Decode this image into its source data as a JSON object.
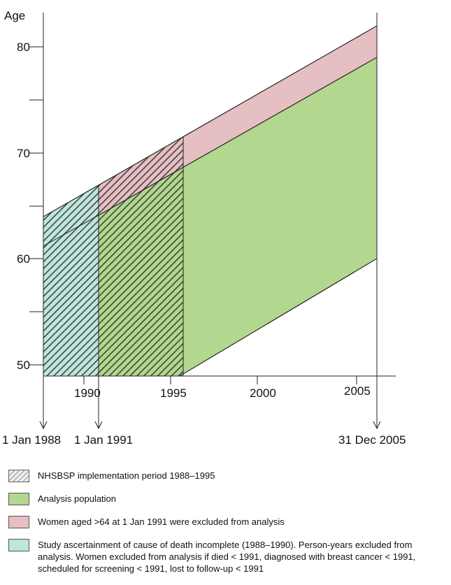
{
  "y_axis": {
    "label": "Age",
    "ticks": [
      "80",
      "70",
      "60",
      "50"
    ]
  },
  "x_axis": {
    "ticks": [
      "1990",
      "1995",
      "2000",
      "2005"
    ]
  },
  "markers": [
    {
      "label": "1 Jan 1988"
    },
    {
      "label": "1 Jan 1991"
    },
    {
      "label": "31 Dec 2005"
    }
  ],
  "legend": [
    {
      "id": "implementation",
      "text": "NHSBSP implementation period 1988–1995",
      "swatch": "hatched"
    },
    {
      "id": "analysis",
      "text": "Analysis population",
      "color": "#b1d88e"
    },
    {
      "id": "excluded",
      "text": "Women aged >64 at 1 Jan 1991 were excluded from analysis",
      "color": "#e6bfc2"
    },
    {
      "id": "incomplete",
      "text": "Study ascertainment of cause of death incomplete (1988–1990). Person-years excluded from analysis. Women excluded from analysis if died < 1991, diagnosed with breast cancer < 1991, scheduled for screening < 1991, lost to follow-up < 1991",
      "color": "#bfe6de"
    }
  ],
  "colors": {
    "analysis": "#b1d88e",
    "excluded": "#e6bfc2",
    "incomplete": "#bfe6de",
    "hatch": "#2a2a2a"
  }
}
